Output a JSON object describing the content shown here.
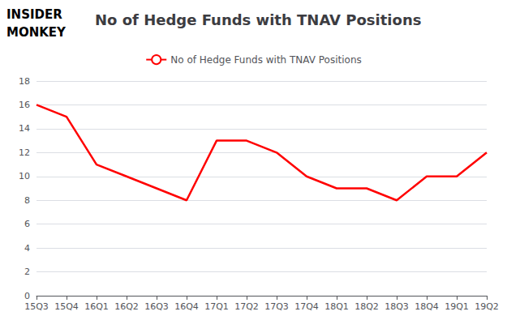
{
  "chart_data": {
    "type": "line",
    "title": "No of Hedge Funds with TNAV Positions",
    "annotations": [
      "INSIDER",
      "MONKEY"
    ],
    "categories": [
      "15Q3",
      "15Q4",
      "16Q1",
      "16Q2",
      "16Q3",
      "16Q4",
      "17Q1",
      "17Q2",
      "17Q3",
      "17Q4",
      "18Q1",
      "18Q2",
      "18Q3",
      "18Q4",
      "19Q1",
      "19Q2"
    ],
    "series": [
      {
        "name": "No of Hedge Funds with TNAV Positions",
        "color": "#ff0000",
        "values": [
          16,
          15,
          11,
          10,
          9,
          8,
          13,
          13,
          12,
          10,
          9,
          9,
          8,
          10,
          10,
          12
        ]
      }
    ],
    "ylim": [
      0,
      18
    ],
    "yticks": [
      0,
      2,
      4,
      6,
      8,
      10,
      12,
      14,
      16,
      18
    ],
    "grid": true,
    "legend": "top"
  }
}
